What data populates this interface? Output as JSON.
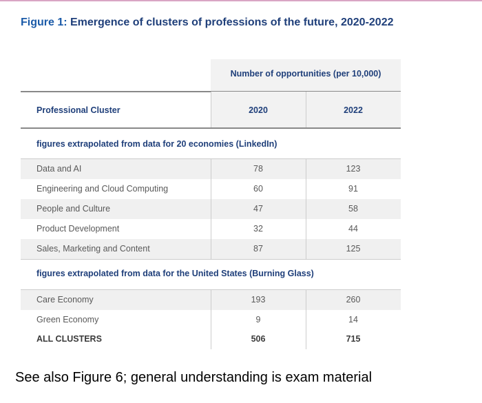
{
  "figure": {
    "title_prefix": "Figure 1:",
    "title_text": " Emergence of clusters of professions of the future, 2020-2022"
  },
  "table": {
    "column_group_label": "Number of opportunities (per 10,000)",
    "row_header_label": "Professional Cluster",
    "years": [
      "2020",
      "2022"
    ],
    "sections": [
      {
        "label": "figures extrapolated from data for 20 economies (LinkedIn)",
        "rows": [
          {
            "name": "Data and AI",
            "v2020": "78",
            "v2022": "123"
          },
          {
            "name": "Engineering and Cloud Computing",
            "v2020": "60",
            "v2022": "91"
          },
          {
            "name": "People and Culture",
            "v2020": "47",
            "v2022": "58"
          },
          {
            "name": "Product Development",
            "v2020": "32",
            "v2022": "44"
          },
          {
            "name": "Sales, Marketing and Content",
            "v2020": "87",
            "v2022": "125"
          }
        ]
      },
      {
        "label": "figures extrapolated from data for the United States (Burning Glass)",
        "rows": [
          {
            "name": "Care Economy",
            "v2020": "193",
            "v2022": "260"
          },
          {
            "name": "Green Economy",
            "v2020": "9",
            "v2022": "14"
          }
        ]
      }
    ],
    "total": {
      "name": "ALL CLUSTERS",
      "v2020": "506",
      "v2022": "715"
    }
  },
  "note": "See also Figure 6; general understanding is exam material",
  "colors": {
    "heading": "#1f3f7a",
    "body_text": "#595959",
    "shade": "#f0f0f0",
    "accent_line": "#d9a6c4"
  }
}
